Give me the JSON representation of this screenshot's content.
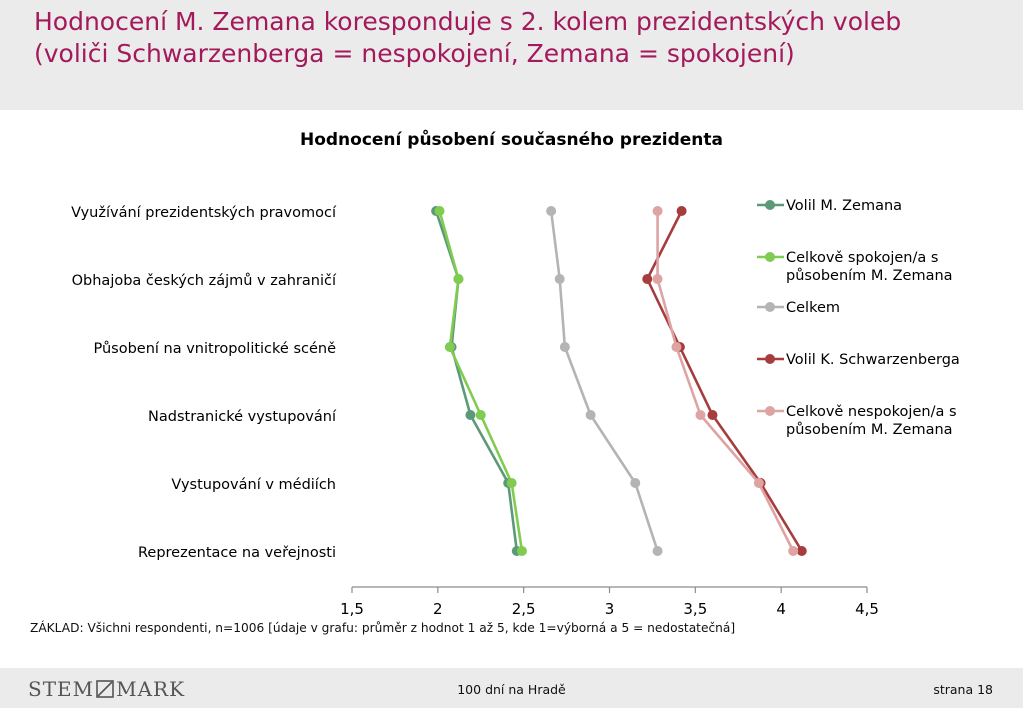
{
  "header": {
    "title_line1": "Hodnocení M. Zemana koresponduje s 2. kolem prezidentských voleb",
    "title_line2": "(voliči Schwarzenberga = nespokojení, Zemana = spokojení)"
  },
  "footnote": "ZÁKLAD: Všichni respondenti, n=1006 [údaje v grafu: průměr z hodnot 1 až 5, kde 1=výborná a 5 = nedostatečná]",
  "footer": {
    "logo_left": "STEM",
    "logo_right": "MARK",
    "center": "100 dní na Hradě",
    "page": "strana 18"
  },
  "chart_data": {
    "type": "line",
    "orientation": "horizontal",
    "title": "Hodnocení působení současného prezidenta",
    "categories": [
      "Využívání prezidentských pravomocí",
      "Obhajoba českých zájmů v zahraničí",
      "Působení na vnitropolitické scéně",
      "Nadstranické vystupování",
      "Vystupování v médiích",
      "Reprezentace na veřejnosti"
    ],
    "xlim": [
      1.5,
      4.5
    ],
    "xticks": [
      "1,5",
      "2",
      "2,5",
      "3",
      "3,5",
      "4",
      "4,5"
    ],
    "xtick_values": [
      1.5,
      2,
      2.5,
      3,
      3.5,
      4,
      4.5
    ],
    "grid": false,
    "legend_position": "right",
    "series": [
      {
        "name": "Volil M. Zemana",
        "color": "#5b9a78",
        "values": [
          1.99,
          2.12,
          2.08,
          2.19,
          2.41,
          2.46
        ]
      },
      {
        "name": "Celkově spokojen/a s působením M. Zemana",
        "color": "#80cc50",
        "legend_lines": [
          "Celkově spokojen/a s",
          "působením M. Zemana"
        ],
        "values": [
          2.01,
          2.12,
          2.07,
          2.25,
          2.43,
          2.49
        ]
      },
      {
        "name": "Celkem",
        "color": "#b4b4b4",
        "values": [
          2.66,
          2.71,
          2.74,
          2.89,
          3.15,
          3.28
        ]
      },
      {
        "name": "Volil K. Schwarzenberga",
        "color": "#a63c3c",
        "values": [
          3.42,
          3.22,
          3.41,
          3.6,
          3.88,
          4.12
        ]
      },
      {
        "name": "Celkově nespokojen/a s působením M. Zemana",
        "color": "#dea3a3",
        "legend_lines": [
          "Celkově nespokojen/a s",
          "působením M. Zemana"
        ],
        "values": [
          3.28,
          3.28,
          3.39,
          3.53,
          3.87,
          4.07
        ]
      }
    ]
  }
}
